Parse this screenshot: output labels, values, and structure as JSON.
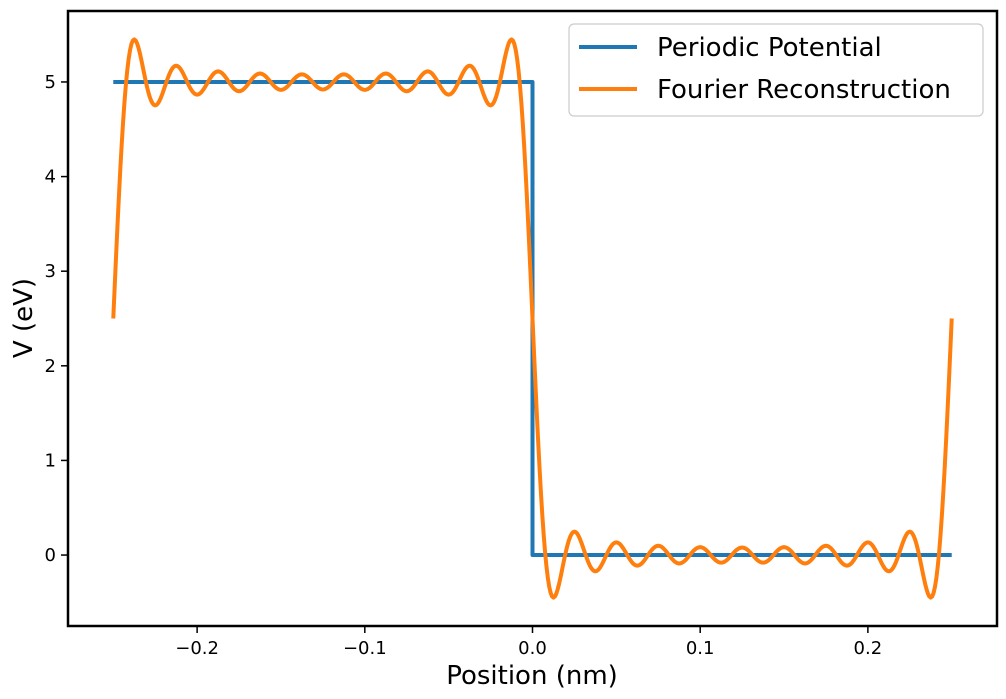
{
  "chart_data": {
    "type": "line",
    "title": "",
    "xlabel": "Position (nm)",
    "ylabel": "V (eV)",
    "xlim": [
      -0.277,
      0.277
    ],
    "ylim": [
      -0.75,
      5.75
    ],
    "x_ticks": [
      -0.2,
      -0.1,
      0.0,
      0.1,
      0.2
    ],
    "x_tick_labels": [
      "−0.2",
      "−0.1",
      "0.0",
      "0.1",
      "0.2"
    ],
    "y_ticks": [
      0,
      1,
      2,
      3,
      4,
      5
    ],
    "y_tick_labels": [
      "0",
      "1",
      "2",
      "3",
      "4",
      "5"
    ],
    "grid": false,
    "legend_position": "top-right",
    "series": [
      {
        "name": "Periodic Potential",
        "color": "#1f77b4",
        "kind": "step",
        "x": [
          -0.25,
          0.0,
          0.0,
          0.25
        ],
        "y": [
          5,
          5,
          0,
          0
        ]
      },
      {
        "name": "Fourier Reconstruction",
        "color": "#ff7f0e",
        "kind": "fourier_square",
        "period": 0.5,
        "amplitude": 5,
        "n_terms": 10,
        "x_range": [
          -0.25,
          0.25
        ],
        "samples": 600
      }
    ]
  }
}
